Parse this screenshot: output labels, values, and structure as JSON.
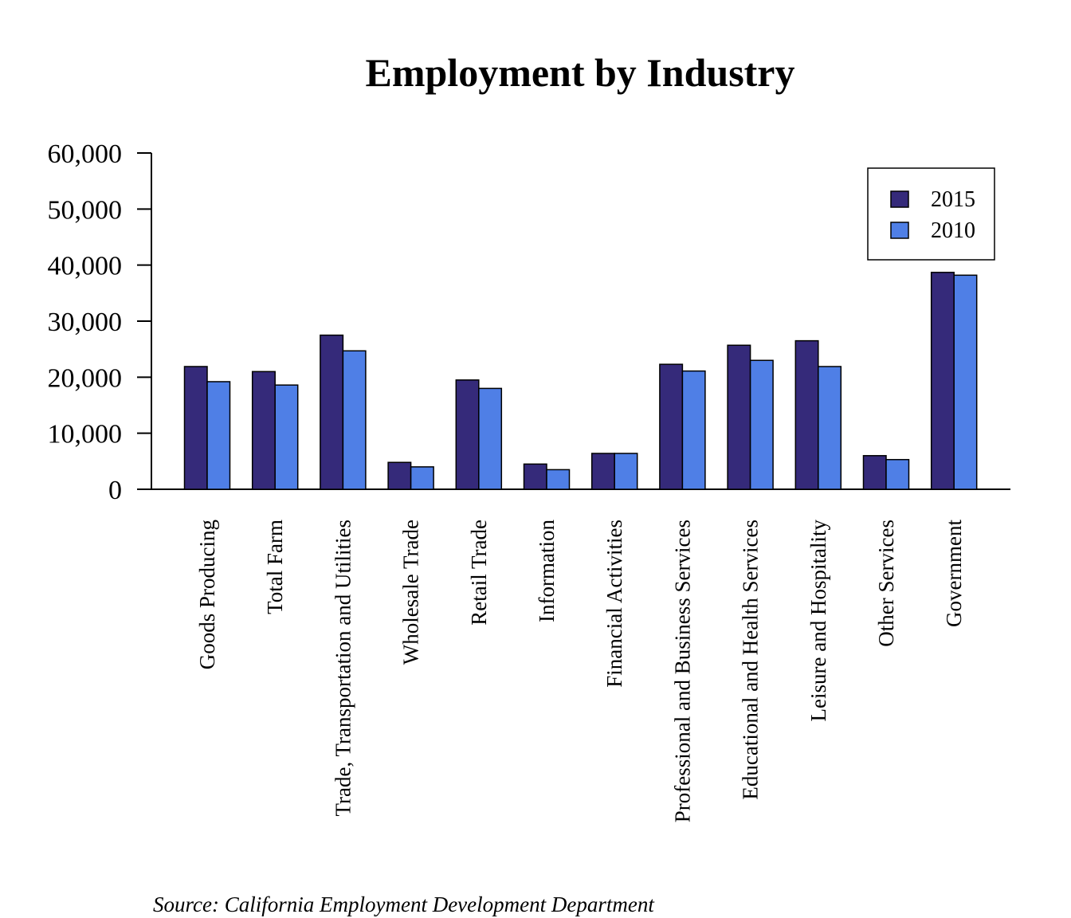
{
  "chart_data": {
    "type": "bar",
    "title": "Employment by Industry",
    "xlabel": "",
    "ylabel": "",
    "ylim": [
      0,
      60000
    ],
    "yticks": [
      0,
      10000,
      20000,
      30000,
      40000,
      50000,
      60000
    ],
    "ytick_labels": [
      "0",
      "10,000",
      "20,000",
      "30,000",
      "40,000",
      "50,000",
      "60,000"
    ],
    "categories": [
      "Goods Producing",
      "Total Farm",
      "Trade, Transportation and Utilities",
      "Wholesale Trade",
      "Retail Trade",
      "Information",
      "Financial Activities",
      "Professional and Business Services",
      "Educational and Health Services",
      "Leisure and Hospitality",
      "Other Services",
      "Government"
    ],
    "series": [
      {
        "name": "2015",
        "color": "#352a7a",
        "values": [
          21900,
          21000,
          27500,
          4800,
          19500,
          4500,
          6400,
          22300,
          25700,
          26500,
          6000,
          38700
        ]
      },
      {
        "name": "2010",
        "color": "#4f7fe6",
        "values": [
          19200,
          18600,
          24700,
          4000,
          18000,
          3500,
          6400,
          21100,
          23000,
          21900,
          5300,
          38200
        ]
      }
    ],
    "legend_position": "top-right",
    "grid": false,
    "source": "Source: California Employment Development Department"
  }
}
